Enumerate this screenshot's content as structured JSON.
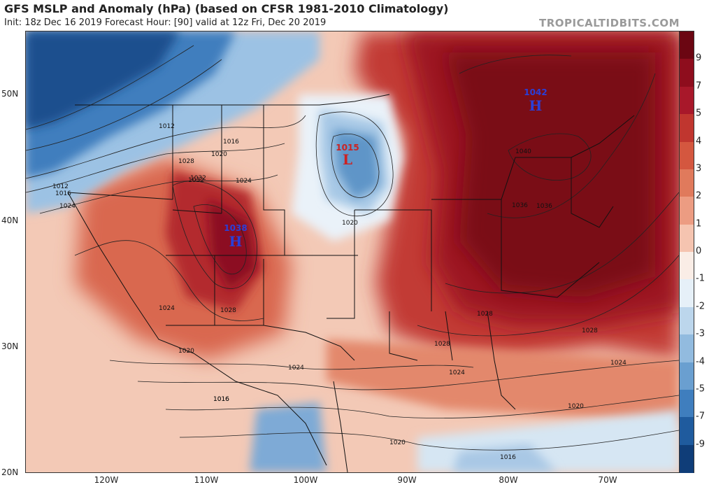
{
  "header": {
    "title": "GFS MSLP and Anomaly (hPa) (based on CFSR 1981-2010 Climatology)",
    "subtitle": "Init: 18z Dec 16 2019   Forecast Hour: [90]   valid at 12z Fri, Dec 20 2019",
    "credit": "TROPICALTIDBITS.COM"
  },
  "axes": {
    "latitude_labels": [
      "50N",
      "40N",
      "30N",
      "20N"
    ],
    "longitude_labels": [
      "120W",
      "110W",
      "100W",
      "90W",
      "80W",
      "70W"
    ]
  },
  "colorbar": {
    "labels": [
      "9",
      "7",
      "5",
      "4",
      "3",
      "2",
      "1",
      "0",
      "-1",
      "-2",
      "-3",
      "-4",
      "-5",
      "-7",
      "-9"
    ],
    "colors": [
      "#6b0612",
      "#8e0d1d",
      "#a8182a",
      "#c0362f",
      "#d4573f",
      "#e07a5c",
      "#ec9c82",
      "#f5c4b0",
      "#faede6",
      "#e6f0f8",
      "#bcd6ec",
      "#92bbdf",
      "#6a9fd0",
      "#3f7ebe",
      "#1f5b9e",
      "#0f3d78"
    ]
  },
  "pressure_centers": [
    {
      "type": "L",
      "value": "1015",
      "color": "#cc2222"
    },
    {
      "type": "H",
      "value": "1038",
      "color": "#2a3fd8"
    },
    {
      "type": "H",
      "value": "1042",
      "color": "#2a3fd8"
    }
  ],
  "isobar_labels": [
    "1012",
    "1016",
    "1020",
    "1024",
    "1028",
    "1032",
    "1036",
    "1040",
    "1012",
    "1016",
    "1020",
    "1024",
    "1028",
    "1024",
    "1020",
    "1016",
    "1028",
    "1024",
    "1028",
    "1024",
    "1028",
    "1032",
    "1036",
    "1024",
    "1020",
    "1020",
    "1016",
    "1016"
  ]
}
